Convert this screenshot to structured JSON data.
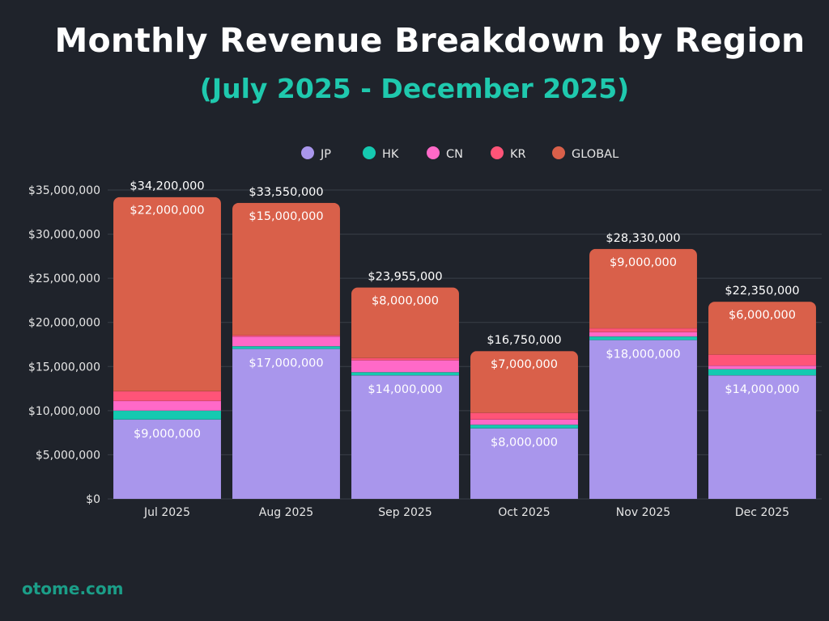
{
  "chart_data": {
    "type": "bar",
    "stacked": true,
    "title": "Monthly Revenue Breakdown by Region",
    "subtitle": "(July 2025 - December 2025)",
    "xlabel": "",
    "ylabel": "",
    "ylim": [
      0,
      35000000
    ],
    "yticks": [
      0,
      5000000,
      10000000,
      15000000,
      20000000,
      25000000,
      30000000,
      35000000
    ],
    "ytick_labels": [
      "$0",
      "$5,000,000",
      "$10,000,000",
      "$15,000,000",
      "$20,000,000",
      "$25,000,000",
      "$30,000,000",
      "$35,000,000"
    ],
    "grid": true,
    "legend_position": "top-center",
    "categories": [
      "Jul 2025",
      "Aug 2025",
      "Sep 2025",
      "Oct 2025",
      "Nov 2025",
      "Dec 2025"
    ],
    "series": [
      {
        "name": "JP",
        "color": "#a996ec",
        "values": [
          9000000,
          17000000,
          14000000,
          8000000,
          18000000,
          14000000
        ]
      },
      {
        "name": "HK",
        "color": "#15c9b0",
        "values": [
          1000000,
          300000,
          355000,
          400000,
          400000,
          700000
        ]
      },
      {
        "name": "CN",
        "color": "#ff69c8",
        "values": [
          1100000,
          1100000,
          1350000,
          600000,
          500000,
          400000
        ]
      },
      {
        "name": "KR",
        "color": "#ff5478",
        "values": [
          1100000,
          150000,
          250000,
          750000,
          430000,
          1250000
        ]
      },
      {
        "name": "GLOBAL",
        "color": "#d9604a",
        "values": [
          22000000,
          15000000,
          8000000,
          7000000,
          9000000,
          6000000
        ]
      }
    ],
    "totals": [
      34200000,
      33550000,
      23955000,
      16750000,
      28330000,
      22350000
    ],
    "total_labels": [
      "$34,200,000",
      "$33,550,000",
      "$23,955,000",
      "$16,750,000",
      "$28,330,000",
      "$22,350,000"
    ],
    "jp_labels": [
      "$9,000,000",
      "$17,000,000",
      "$14,000,000",
      "$8,000,000",
      "$18,000,000",
      "$14,000,000"
    ],
    "global_labels": [
      "$22,000,000",
      "$15,000,000",
      "$8,000,000",
      "$7,000,000",
      "$9,000,000",
      "$6,000,000"
    ]
  },
  "footer": "otome.com"
}
